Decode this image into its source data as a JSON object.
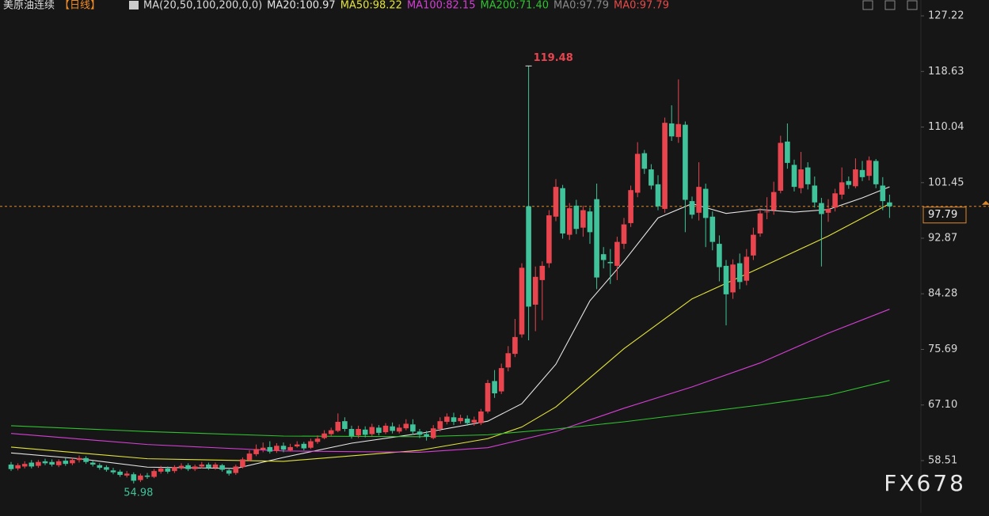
{
  "chart_data": {
    "type": "candlestick",
    "header": {
      "symbol": "美原油连续",
      "period": "【日线】",
      "indicator": "MA(20,50,100,200,0,0)",
      "extra": [
        {
          "label": "MA0:97.79",
          "color": "#8a8a8a"
        },
        {
          "label": "MA0:97.79",
          "color": "#e84a4a"
        }
      ]
    },
    "watermark": "FX678",
    "up_color": "#e8454f",
    "down_color": "#40c39a",
    "ylim": [
      50.44,
      129.67
    ],
    "yticks": [
      58.51,
      67.1,
      75.69,
      84.28,
      92.87,
      101.45,
      110.04,
      118.63,
      127.22
    ],
    "yticks_labels": [
      "58.51",
      "67.10",
      "75.69",
      "84.28",
      "92.87",
      "101.45",
      "110.04",
      "118.63",
      "127.22"
    ],
    "high_label": 119.48,
    "low_label": 54.98,
    "last_price": 97.79,
    "open": [
      57.9,
      57.3,
      57.6,
      58.2,
      57.7,
      58.4,
      58.3,
      57.8,
      58.5,
      58.1,
      58.6,
      58.9,
      58.2,
      57.8,
      57.5,
      57.0,
      56.8,
      56.2,
      56.4,
      55.5,
      56.2,
      56.0,
      56.8,
      57.3,
      56.9,
      57.4,
      57.8,
      57.2,
      57.6,
      57.9,
      57.4,
      57.8,
      57.0,
      56.6,
      57.5,
      58.6,
      59.5,
      60.2,
      60.6,
      60.0,
      60.8,
      60.1,
      60.7,
      61.1,
      60.5,
      61.4,
      62.0,
      62.6,
      63.1,
      64.6,
      63.4,
      62.4,
      63.3,
      62.6,
      63.6,
      62.9,
      63.8,
      63.0,
      63.5,
      64.1,
      63.0,
      62.6,
      62.0,
      63.4,
      64.5,
      65.2,
      64.6,
      65.0,
      64.4,
      64.3,
      66.1,
      70.8,
      69.2,
      72.9,
      75.0,
      78.0,
      97.8,
      82.6,
      86.4,
      89.0,
      96.2,
      100.6,
      93.4,
      97.9,
      94.5,
      97.0,
      98.9,
      90.4,
      89.2,
      88.6,
      92.0,
      95.2,
      99.9,
      106.0,
      103.5,
      101.2,
      97.4,
      110.6,
      108.5,
      110.4,
      98.6,
      96.8,
      100.5,
      96.2,
      92.0,
      88.6,
      84.5,
      89.0,
      86.3,
      90.2,
      93.6,
      96.9,
      97.2,
      100.2,
      107.8,
      104.2,
      100.6,
      103.8,
      101.0,
      98.3,
      96.8,
      97.6,
      99.6,
      101.7,
      100.9,
      103.4,
      102.5,
      104.8,
      101.0,
      98.4
    ],
    "high": [
      58.3,
      58.1,
      58.4,
      58.6,
      58.6,
      58.8,
      58.7,
      58.7,
      58.9,
      59.0,
      59.3,
      59.2,
      58.5,
      58.1,
      57.8,
      57.4,
      57.1,
      56.9,
      56.7,
      56.5,
      56.6,
      57.2,
      57.7,
      57.6,
      57.8,
      58.1,
      58.1,
      57.9,
      58.3,
      58.2,
      58.2,
      58.0,
      57.2,
      57.9,
      59.0,
      60.1,
      61.0,
      61.3,
      61.5,
      61.2,
      61.3,
      61.1,
      61.5,
      61.4,
      61.9,
      62.4,
      63.2,
      63.6,
      65.8,
      65.2,
      63.9,
      63.9,
      63.8,
      64.2,
      64.0,
      64.3,
      64.4,
      64.1,
      64.9,
      64.9,
      63.4,
      63.1,
      64.0,
      65.2,
      65.8,
      65.9,
      65.6,
      65.5,
      65.3,
      66.5,
      71.0,
      72.5,
      73.5,
      76.2,
      80.4,
      89.0,
      119.48,
      88.5,
      89.3,
      97.2,
      102.0,
      101.1,
      98.3,
      98.8,
      97.9,
      97.6,
      101.3,
      91.5,
      91.2,
      93.1,
      96.0,
      101.0,
      107.7,
      106.5,
      104.3,
      102.6,
      111.5,
      113.4,
      117.4,
      110.9,
      99.3,
      104.6,
      101.3,
      97.0,
      93.3,
      89.5,
      89.6,
      90.5,
      91.2,
      94.5,
      97.5,
      99.2,
      101.6,
      108.7,
      110.6,
      105.0,
      106.2,
      104.6,
      102.4,
      99.1,
      98.9,
      100.5,
      103.8,
      102.4,
      105.2,
      104.8,
      105.5,
      105.1,
      102.3,
      99.6
    ],
    "low": [
      56.9,
      57.0,
      57.3,
      57.3,
      57.4,
      57.8,
      57.6,
      57.5,
      57.7,
      57.8,
      58.2,
      58.0,
      57.6,
      57.1,
      56.8,
      56.4,
      56.0,
      55.9,
      54.98,
      55.2,
      55.7,
      55.8,
      56.5,
      56.5,
      56.6,
      57.1,
      56.9,
      56.9,
      57.3,
      57.1,
      57.1,
      56.8,
      56.2,
      56.3,
      57.3,
      58.4,
      59.2,
      59.8,
      59.6,
      59.7,
      59.8,
      59.9,
      60.5,
      60.1,
      60.3,
      61.1,
      61.8,
      62.3,
      62.9,
      63.0,
      61.9,
      62.0,
      62.1,
      62.3,
      62.4,
      62.6,
      62.7,
      62.7,
      63.2,
      62.5,
      62.0,
      61.6,
      61.8,
      63.0,
      64.1,
      64.0,
      64.2,
      63.9,
      63.9,
      64.0,
      65.8,
      68.2,
      68.8,
      72.3,
      74.5,
      77.5,
      77.1,
      78.5,
      80.2,
      88.3,
      95.5,
      92.8,
      92.6,
      93.5,
      93.1,
      92.0,
      85.0,
      88.2,
      85.8,
      86.4,
      91.2,
      94.6,
      99.2,
      102.8,
      100.4,
      97.2,
      96.8,
      107.9,
      107.6,
      93.8,
      95.9,
      95.6,
      91.5,
      91.0,
      86.2,
      79.4,
      83.5,
      85.0,
      85.6,
      89.5,
      93.1,
      95.8,
      96.5,
      99.8,
      103.6,
      100.1,
      99.8,
      100.4,
      97.6,
      88.5,
      95.4,
      97.0,
      98.9,
      100.5,
      100.6,
      101.7,
      101.8,
      100.6,
      97.2,
      96.0
    ],
    "close": [
      57.2,
      57.8,
      58.0,
      57.6,
      58.3,
      58.1,
      57.9,
      58.4,
      58.0,
      58.6,
      58.9,
      58.3,
      57.9,
      57.4,
      57.1,
      56.7,
      56.3,
      56.5,
      55.4,
      56.2,
      56.0,
      56.9,
      57.3,
      56.8,
      57.5,
      57.7,
      57.2,
      57.6,
      57.9,
      57.4,
      57.9,
      57.1,
      56.5,
      57.6,
      58.7,
      59.6,
      60.3,
      60.5,
      59.9,
      60.8,
      60.2,
      60.6,
      61.0,
      60.4,
      61.5,
      61.9,
      62.7,
      63.2,
      64.5,
      63.4,
      62.3,
      63.4,
      62.5,
      63.7,
      62.8,
      63.9,
      63.1,
      63.6,
      64.2,
      63.0,
      62.5,
      62.2,
      63.5,
      64.6,
      65.3,
      64.5,
      65.1,
      64.3,
      64.8,
      66.1,
      70.5,
      68.9,
      72.8,
      75.1,
      77.6,
      88.3,
      82.3,
      86.9,
      88.6,
      96.4,
      100.8,
      93.6,
      97.5,
      94.3,
      97.2,
      93.8,
      86.8,
      89.5,
      89.0,
      92.3,
      95.0,
      100.3,
      105.9,
      103.6,
      101.0,
      97.8,
      110.7,
      108.6,
      110.5,
      98.8,
      96.5,
      100.8,
      96.0,
      92.3,
      88.4,
      84.2,
      88.8,
      86.1,
      90.0,
      93.4,
      96.7,
      97.0,
      100.0,
      107.6,
      104.5,
      100.8,
      103.5,
      101.2,
      98.4,
      96.6,
      97.4,
      99.8,
      101.5,
      101.1,
      103.5,
      102.3,
      104.9,
      101.2,
      98.6,
      97.79
    ],
    "series": [
      {
        "name": "MA20:100.97",
        "color": "#e6e6e6",
        "x": [
          0,
          10,
          20,
          33,
          40,
          50,
          60,
          70,
          75,
          80,
          85,
          90,
          95,
          100,
          105,
          110,
          115,
          120,
          125,
          129
        ],
        "values": [
          59.7,
          58.8,
          57.5,
          57.3,
          59.0,
          61.2,
          62.7,
          64.6,
          67.3,
          73.4,
          83.2,
          89.3,
          96.0,
          98.2,
          96.7,
          97.3,
          96.9,
          97.3,
          99.1,
          100.8
        ]
      },
      {
        "name": "MA50:98.22",
        "color": "#e3e33c",
        "x": [
          0,
          20,
          40,
          60,
          70,
          75,
          80,
          90,
          100,
          110,
          120,
          129
        ],
        "values": [
          60.6,
          58.8,
          58.4,
          60.1,
          61.9,
          63.7,
          66.8,
          75.8,
          83.5,
          88.3,
          93.2,
          98.2
        ]
      },
      {
        "name": "MA100:82.15",
        "color": "#d63fd6",
        "x": [
          0,
          20,
          40,
          60,
          70,
          80,
          90,
          100,
          110,
          120,
          129
        ],
        "values": [
          62.7,
          61.0,
          60.0,
          59.8,
          60.5,
          63.0,
          66.6,
          69.9,
          73.6,
          78.2,
          81.9
        ]
      },
      {
        "name": "MA200:71.40",
        "color": "#2fc22f",
        "x": [
          0,
          20,
          40,
          60,
          70,
          80,
          90,
          100,
          110,
          120,
          129
        ],
        "values": [
          63.9,
          63.0,
          62.3,
          62.2,
          62.5,
          63.4,
          64.5,
          65.8,
          67.1,
          68.6,
          70.9
        ]
      }
    ]
  }
}
